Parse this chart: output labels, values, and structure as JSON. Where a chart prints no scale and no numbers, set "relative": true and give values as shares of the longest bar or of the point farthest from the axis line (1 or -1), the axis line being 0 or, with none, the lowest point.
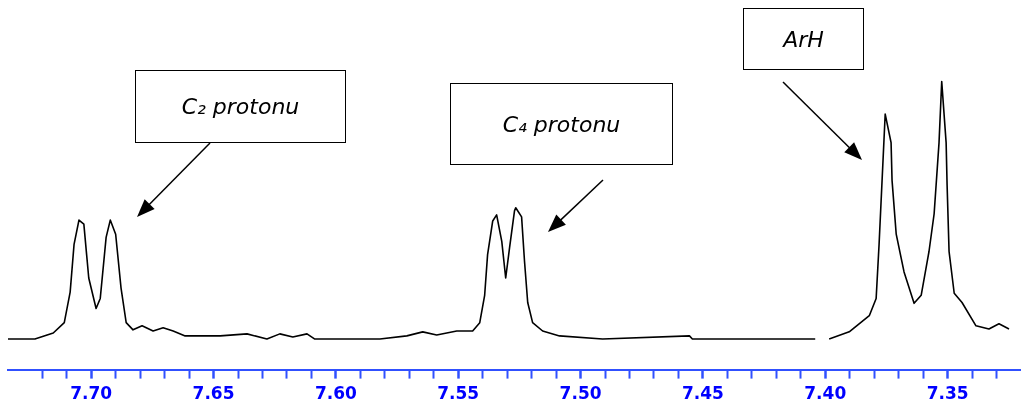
{
  "chart_data": {
    "type": "line",
    "relative": true,
    "marker": "none",
    "line_style": "solid",
    "x": [
      7.734,
      7.723,
      7.7155,
      7.711,
      7.7086,
      7.707,
      7.705,
      7.703,
      7.701,
      7.698,
      7.6963,
      7.6939,
      7.6922,
      7.69,
      7.6878,
      7.6857,
      7.6829,
      7.6792,
      7.6747,
      7.6706,
      7.6665,
      7.6616,
      7.6473,
      7.6363,
      7.6282,
      7.6229,
      7.6176,
      7.6118,
      7.6086,
      7.582,
      7.571,
      7.5645,
      7.5588,
      7.5506,
      7.5441,
      7.5412,
      7.5392,
      7.538,
      7.5359,
      7.5343,
      7.5322,
      7.5306,
      7.529,
      7.527,
      7.5265,
      7.5241,
      7.5229,
      7.5216,
      7.5196,
      7.5155,
      7.5086,
      7.491,
      7.4555,
      7.4543,
      7.4041,
      7.401,
      7.3984,
      7.3902,
      7.382,
      7.3792,
      7.378,
      7.3755,
      7.3731,
      7.3727,
      7.371,
      7.3678,
      7.3637,
      7.3608,
      7.3576,
      7.3555,
      7.3547,
      7.3535,
      7.3524,
      7.3506,
      7.3502,
      7.3494,
      7.3473,
      7.3441,
      7.3384,
      7.3331,
      7.329,
      7.3249
    ],
    "series": [
      {
        "color": "#000000",
        "values": [
          0.106,
          0.106,
          0.127,
          0.163,
          0.269,
          0.435,
          0.519,
          0.505,
          0.318,
          0.212,
          0.247,
          0.459,
          0.519,
          0.47,
          0.283,
          0.163,
          0.138,
          0.152,
          0.134,
          0.145,
          0.134,
          0.117,
          0.117,
          0.124,
          0.106,
          0.124,
          0.113,
          0.124,
          0.106,
          0.106,
          0.117,
          0.131,
          0.12,
          0.134,
          0.134,
          0.163,
          0.258,
          0.399,
          0.516,
          0.537,
          0.445,
          0.318,
          0.424,
          0.551,
          0.562,
          0.53,
          0.375,
          0.233,
          0.163,
          0.134,
          0.117,
          0.106,
          0.117,
          0.106,
          0.106,
          null,
          0.106,
          0.131,
          0.187,
          0.247,
          0.435,
          0.887,
          0.788,
          0.657,
          0.47,
          0.339,
          0.23,
          0.258,
          0.41,
          0.541,
          0.64,
          0.788,
          1.0,
          0.788,
          0.64,
          0.41,
          0.265,
          0.233,
          0.152,
          0.141,
          0.159,
          0.141
        ]
      }
    ],
    "xlim": [
      7.734,
      7.32
    ],
    "xticks": [
      {
        "value": 7.72,
        "label": null
      },
      {
        "value": 7.71,
        "label": null
      },
      {
        "value": 7.7,
        "label": "7.70"
      },
      {
        "value": 7.69,
        "label": null
      },
      {
        "value": 7.68,
        "label": null
      },
      {
        "value": 7.67,
        "label": null
      },
      {
        "value": 7.66,
        "label": null
      },
      {
        "value": 7.65,
        "label": "7.65"
      },
      {
        "value": 7.64,
        "label": null
      },
      {
        "value": 7.63,
        "label": null
      },
      {
        "value": 7.62,
        "label": null
      },
      {
        "value": 7.61,
        "label": null
      },
      {
        "value": 7.6,
        "label": "7.60"
      },
      {
        "value": 7.59,
        "label": null
      },
      {
        "value": 7.58,
        "label": null
      },
      {
        "value": 7.57,
        "label": null
      },
      {
        "value": 7.56,
        "label": null
      },
      {
        "value": 7.55,
        "label": "7.55"
      },
      {
        "value": 7.54,
        "label": null
      },
      {
        "value": 7.53,
        "label": null
      },
      {
        "value": 7.52,
        "label": null
      },
      {
        "value": 7.51,
        "label": null
      },
      {
        "value": 7.5,
        "label": "7.50"
      },
      {
        "value": 7.49,
        "label": null
      },
      {
        "value": 7.48,
        "label": null
      },
      {
        "value": 7.47,
        "label": null
      },
      {
        "value": 7.46,
        "label": null
      },
      {
        "value": 7.45,
        "label": "7.45"
      },
      {
        "value": 7.44,
        "label": null
      },
      {
        "value": 7.43,
        "label": null
      },
      {
        "value": 7.42,
        "label": null
      },
      {
        "value": 7.41,
        "label": null
      },
      {
        "value": 7.4,
        "label": "7.40"
      },
      {
        "value": 7.39,
        "label": null
      },
      {
        "value": 7.38,
        "label": null
      },
      {
        "value": 7.37,
        "label": null
      },
      {
        "value": 7.36,
        "label": null
      },
      {
        "value": 7.35,
        "label": "7.35"
      },
      {
        "value": 7.34,
        "label": null
      },
      {
        "value": 7.33,
        "label": null
      }
    ],
    "annotations": [
      "C₂ protonu",
      "C₄ protonu",
      "ArH"
    ]
  }
}
